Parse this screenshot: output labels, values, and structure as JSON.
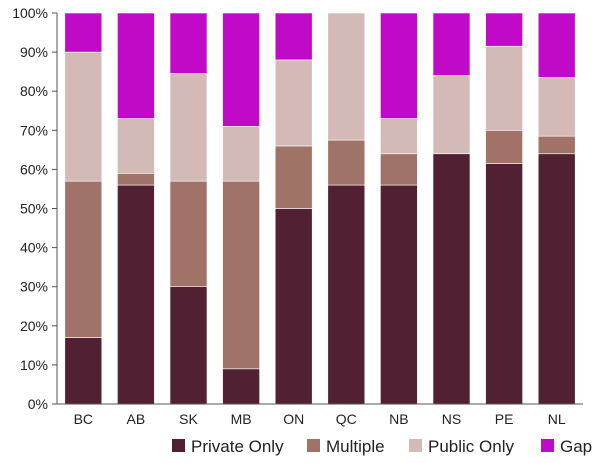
{
  "chart_data": {
    "type": "bar",
    "stacked": true,
    "categories": [
      "BC",
      "AB",
      "SK",
      "MB",
      "ON",
      "QC",
      "NB",
      "NS",
      "PE",
      "NL"
    ],
    "series": [
      {
        "name": "Private Only",
        "color": "#512032",
        "values": [
          17,
          56,
          30,
          9,
          50,
          56,
          56,
          64,
          61.5,
          64
        ]
      },
      {
        "name": "Multiple",
        "color": "#A07268",
        "values": [
          40,
          3,
          27,
          48,
          16,
          11.5,
          8,
          0,
          8.5,
          4.5
        ]
      },
      {
        "name": "Public Only",
        "color": "#D3BAB6",
        "values": [
          33,
          14,
          27.5,
          14,
          22,
          32.5,
          9,
          20,
          21.5,
          15
        ]
      },
      {
        "name": "Gap",
        "color": "#C10AC8",
        "values": [
          10,
          27,
          15.5,
          29,
          12,
          0,
          27,
          16,
          8.5,
          16.5
        ]
      }
    ],
    "ylim": [
      0,
      100
    ],
    "yticks": [
      "0%",
      "10%",
      "20%",
      "30%",
      "40%",
      "50%",
      "60%",
      "70%",
      "80%",
      "90%",
      "100%"
    ],
    "title": "",
    "xlabel": "",
    "ylabel": "",
    "legend": "bottom",
    "grid": false
  }
}
